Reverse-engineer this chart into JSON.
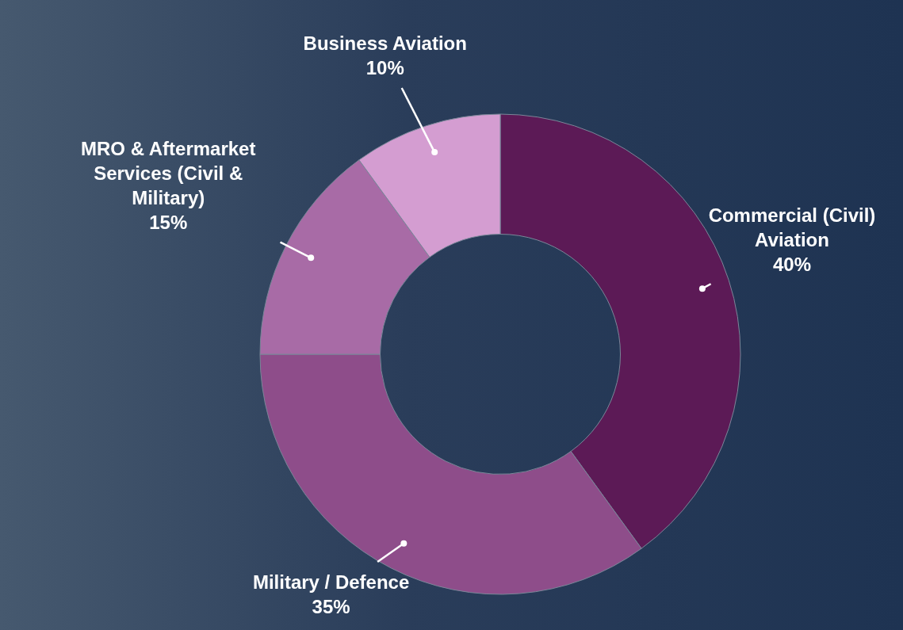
{
  "chart_data": {
    "type": "donut",
    "categories": [
      "Commercial (Civil) Aviation",
      "Military / Defence",
      "MRO & Aftermarket Services (Civil & Military)",
      "Business Aviation"
    ],
    "values": [
      40,
      35,
      15,
      10
    ],
    "value_labels": [
      "40%",
      "35%",
      "15%",
      "10%"
    ],
    "colors": [
      "#5c1a56",
      "#8e4d8a",
      "#a86ba6",
      "#d49dd1"
    ]
  }
}
